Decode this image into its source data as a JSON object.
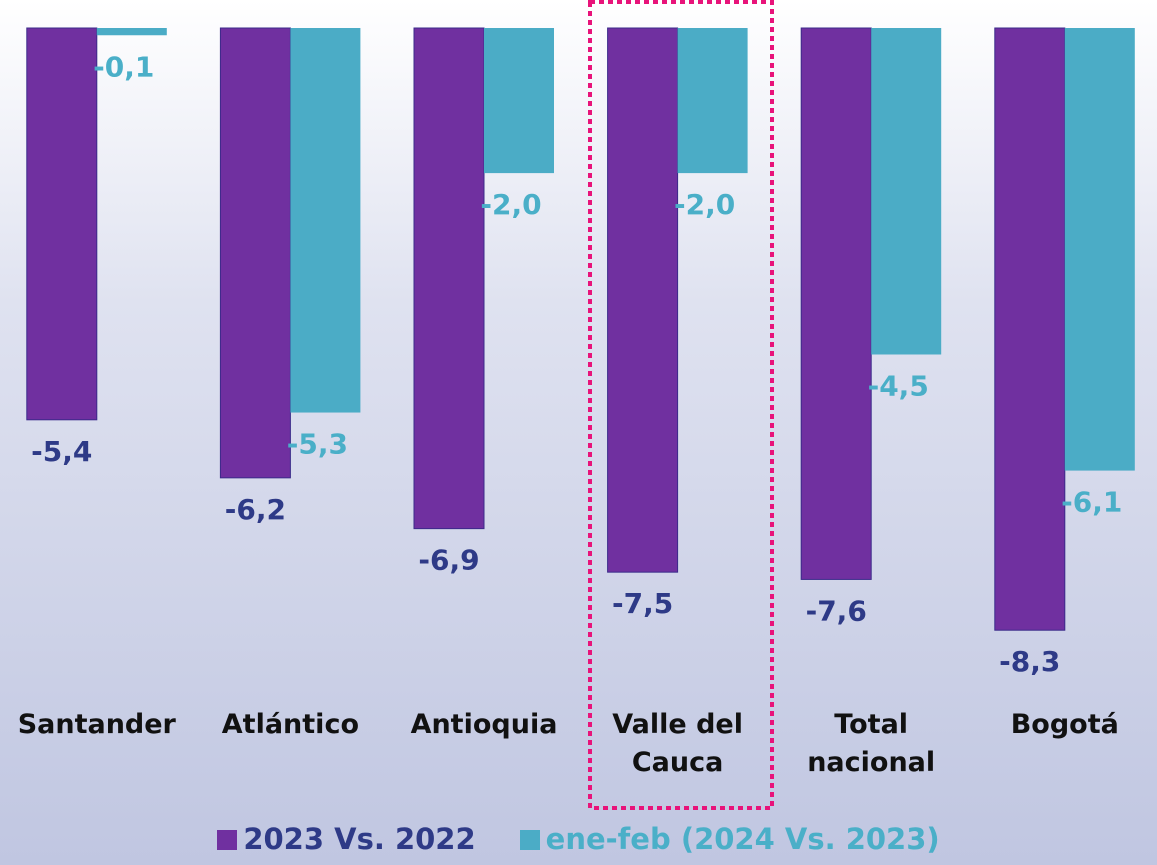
{
  "chart_data": {
    "type": "bar",
    "categories": [
      "Santander",
      "Atlántico",
      "Antioquia",
      "Valle del Cauca",
      "Total nacional",
      "Bogotá"
    ],
    "series": [
      {
        "name": "2023 Vs. 2022",
        "color": "#7030a0",
        "label_color": "#2e3a87",
        "values": [
          -5.4,
          -6.2,
          -6.9,
          -7.5,
          -7.6,
          -8.3
        ],
        "value_labels": [
          "-5,4",
          "-6,2",
          "-6,9",
          "-7,5",
          "-7,6",
          "-8,3"
        ]
      },
      {
        "name": "ene-feb (2024 Vs. 2023)",
        "color": "#4bacc6",
        "label_color": "#4aafc8",
        "values": [
          -0.1,
          -5.3,
          -2.0,
          -2.0,
          -4.5,
          -6.1
        ],
        "value_labels": [
          "-0,1",
          "-5,3",
          "-2,0",
          "-2,0",
          "-4,5",
          "-6,1"
        ]
      }
    ],
    "ylim": [
      -9,
      0
    ],
    "legend": "bottom"
  }
}
